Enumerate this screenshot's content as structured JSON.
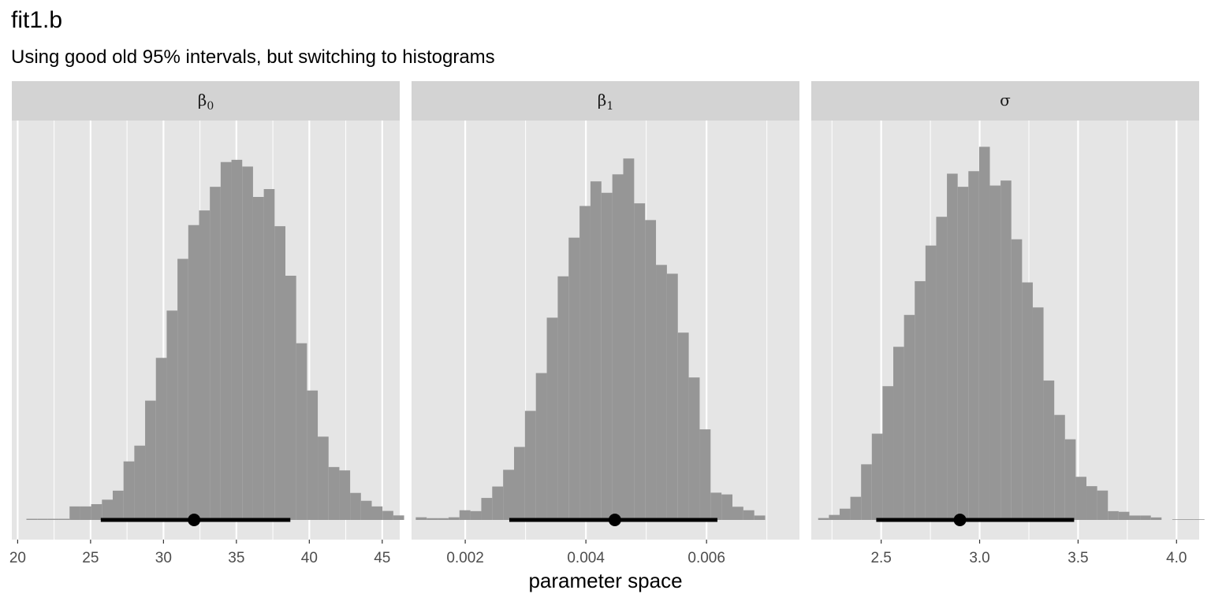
{
  "title": "fit1.b",
  "subtitle": "Using good old 95% intervals, but switching to histograms",
  "colors": {
    "panel_bg": "#e5e5e5",
    "strip_bg": "#d3d3d3",
    "grid": "#ffffff",
    "bar": "#969696",
    "interval": "#000000",
    "tick_text": "#4d4d4d"
  },
  "chart_data": {
    "type": "bar",
    "subtype": "faceted-histogram-with-interval",
    "xlabel": "parameter space",
    "ylabel": "",
    "grid": true,
    "legend": "none",
    "facets": [
      {
        "name": "β",
        "sub": "0",
        "xlim": [
          19.6,
          46.2
        ],
        "ticks": [
          20,
          25,
          30,
          35,
          40,
          45
        ],
        "tick_labels": [
          "20",
          "25",
          "30",
          "35",
          "40",
          "45"
        ],
        "minor_ticks": [
          22.5,
          27.5,
          32.5,
          37.5,
          42.5
        ],
        "bin_start": 20.6,
        "bin_width": 0.74,
        "counts": [
          1,
          1,
          1,
          1,
          12,
          12,
          14,
          18,
          26,
          52,
          66,
          106,
          144,
          186,
          232,
          262,
          275,
          296,
          318,
          320,
          314,
          287,
          294,
          261,
          217,
          157,
          115,
          74,
          47,
          44,
          24,
          17,
          12,
          8,
          4,
          0,
          1,
          0,
          4
        ],
        "interval": {
          "lower": 25.7,
          "point": 32.1,
          "upper": 38.7
        },
        "ymax": 336
      },
      {
        "name": "β",
        "sub": "1",
        "xlim": [
          0.00111,
          0.00754
        ],
        "ticks": [
          0.002,
          0.004,
          0.006
        ],
        "tick_labels": [
          "0.002",
          "0.004",
          "0.006"
        ],
        "minor_ticks": [
          0.001,
          0.003,
          0.005,
          0.007
        ],
        "bin_start": 0.00118,
        "bin_width": 0.000181,
        "counts": [
          3,
          2,
          2,
          3,
          11,
          10,
          25,
          38,
          57,
          83,
          124,
          167,
          230,
          277,
          321,
          357,
          385,
          372,
          393,
          411,
          360,
          341,
          290,
          280,
          213,
          162,
          103,
          31,
          29,
          15,
          11,
          5
        ],
        "interval": {
          "lower": 0.00273,
          "point": 0.00448,
          "upper": 0.00618
        },
        "ymax": 430
      },
      {
        "name": "σ",
        "sub": "",
        "xlim": [
          2.145,
          4.115
        ],
        "ticks": [
          2.5,
          3.0,
          3.5,
          4.0
        ],
        "tick_labels": [
          "2.5",
          "3.0",
          "3.5",
          "4.0"
        ],
        "minor_ticks": [
          2.25,
          2.75,
          3.25,
          3.75
        ],
        "bin_start": 2.18,
        "bin_width": 0.0545,
        "counts": [
          3,
          8,
          18,
          37,
          89,
          138,
          214,
          277,
          328,
          382,
          439,
          485,
          554,
          533,
          558,
          597,
          535,
          543,
          449,
          380,
          340,
          223,
          168,
          129,
          69,
          54,
          47,
          14,
          13,
          7,
          7,
          4,
          0,
          1,
          1,
          1
        ],
        "interval": {
          "lower": 2.475,
          "point": 2.9,
          "upper": 3.48
        },
        "ymax": 605
      }
    ]
  }
}
